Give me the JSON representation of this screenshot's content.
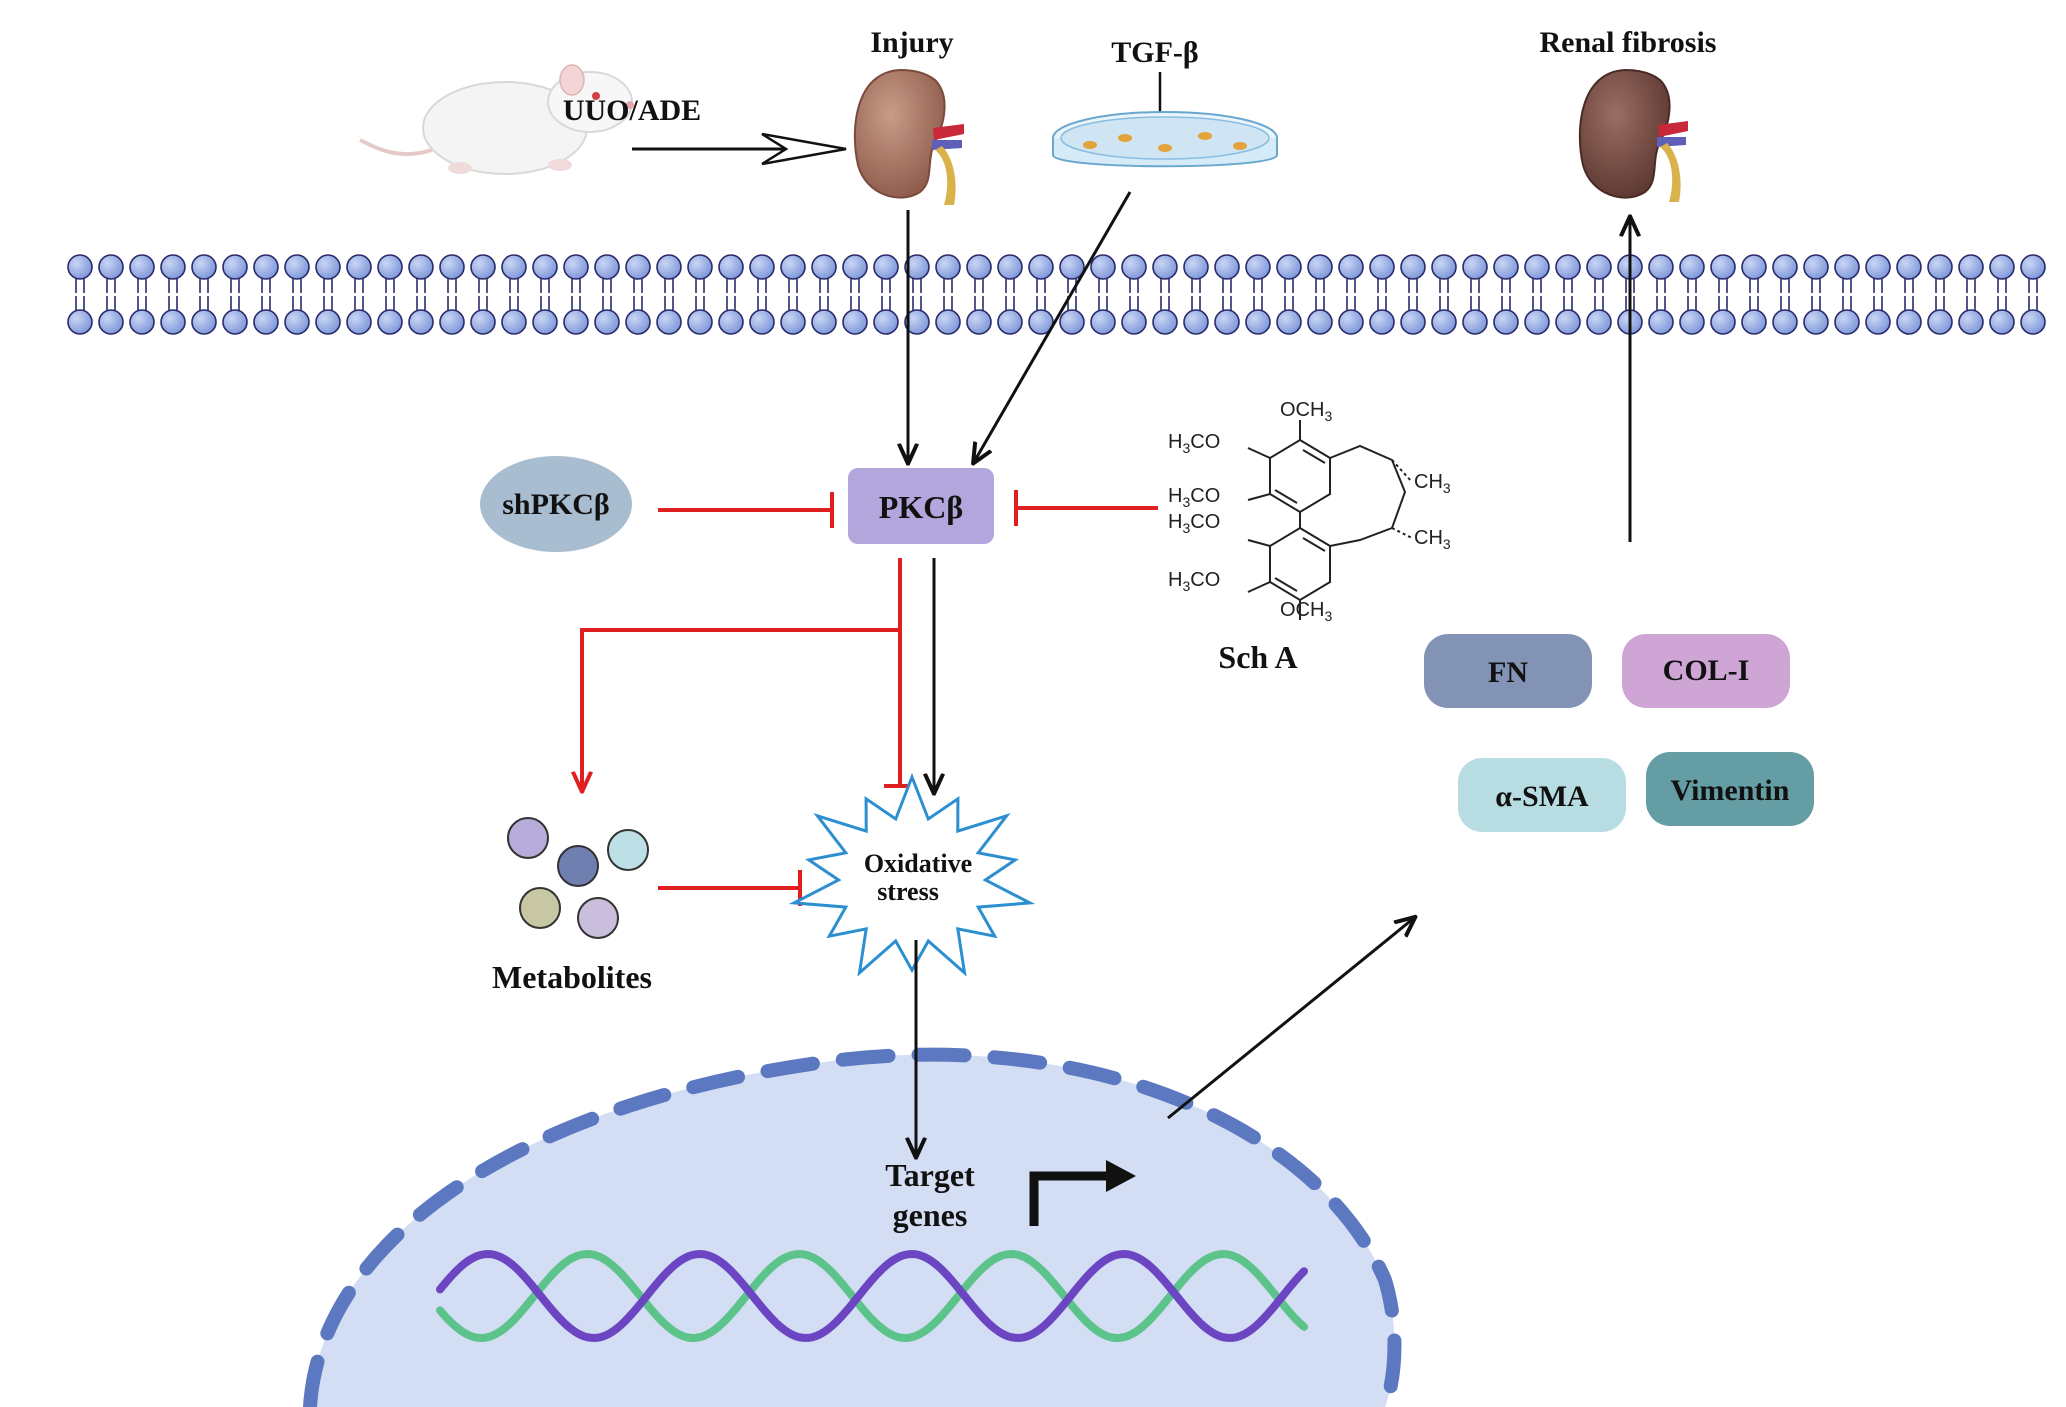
{
  "labels": {
    "injury": "Injury",
    "tgf": "TGF-β",
    "renal_fibrosis": "Renal fibrosis",
    "uuo_ade": "UUO/ADE",
    "shpkc": "shPKCβ",
    "pkc": "PKCβ",
    "sch_a": "Sch A",
    "metabolites": "Metabolites",
    "oxidative_line1": "Oxidative",
    "oxidative_line2": "stress",
    "target_line1": "Target",
    "target_line2": "genes"
  },
  "markers": [
    {
      "label": "FN",
      "color": "#8293b5"
    },
    {
      "label": "COL-I",
      "color": "#cfa5d6"
    },
    {
      "label": "α-SMA",
      "color": "#b7dde3"
    },
    {
      "label": "Vimentin",
      "color": "#649da3"
    }
  ],
  "chemistry": {
    "och3_top": "OCH",
    "och3_top_sub": "3",
    "h3co_1": "H",
    "h3co_1_sub": "3",
    "h3co_1_tail": "CO",
    "h3co_2": "H",
    "h3co_2_sub": "3",
    "h3co_2_tail": "CO",
    "h3co_3": "H",
    "h3co_3_sub": "3",
    "h3co_3_tail": "CO",
    "h3co_4": "H",
    "h3co_4_sub": "3",
    "h3co_4_tail": "CO",
    "ch3_1": "CH",
    "ch3_1_sub": "3",
    "ch3_2": "CH",
    "ch3_2_sub": "3",
    "och3_bottom": "OCH",
    "och3_bottom_sub": "3"
  },
  "colors": {
    "activate": "#111111",
    "inhibit": "#e02020",
    "membrane_head": "#8ea6e0",
    "nucleus_fill": "#d3ddf3",
    "nucleus_border": "#5b78c0",
    "pkc_box": "#b3a6dc",
    "shpkc_ellipse": "#a9bdd0",
    "dna_strand_a": "#6b45c2",
    "dna_strand_b": "#5cc48a"
  }
}
